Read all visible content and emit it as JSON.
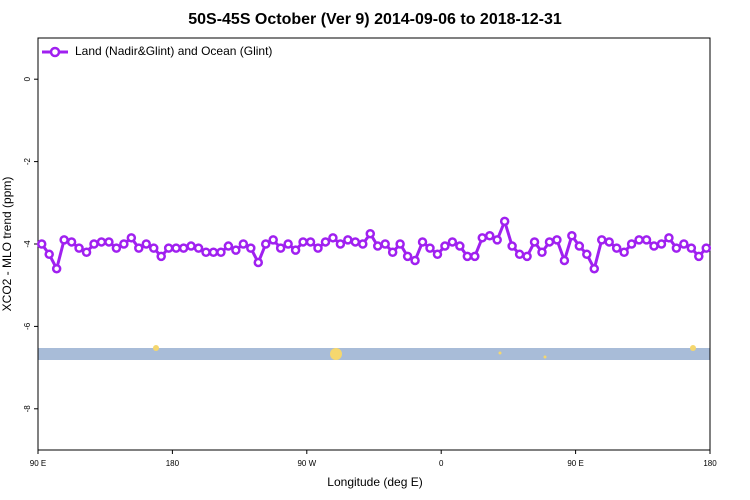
{
  "chart_data": {
    "type": "line",
    "title": "50S-45S October (Ver 9)   2014-09-06 to 2018-12-31",
    "x_label": "Longitude (deg E)",
    "y_label": "XCO2 - MLO trend (ppm)",
    "xlim": [
      90,
      540
    ],
    "ylim": [
      -9,
      1
    ],
    "xticks": [
      {
        "value": 90,
        "label": "90 E"
      },
      180,
      {
        "value": 270,
        "label": "90 W"
      },
      {
        "value": 360,
        "label": "0"
      },
      {
        "value": 450,
        "label": "90 E"
      },
      {
        "value": 540,
        "label": "180"
      }
    ],
    "yticks": [
      -8,
      -6,
      -4,
      -2,
      0
    ],
    "grid": false,
    "legend": "top-left",
    "x": [
      92.5,
      97.5,
      102.5,
      107.5,
      112.5,
      117.5,
      122.5,
      127.5,
      132.5,
      137.5,
      142.5,
      147.5,
      152.5,
      157.5,
      162.5,
      167.5,
      172.5,
      177.5,
      182.5,
      187.5,
      192.5,
      197.5,
      202.5,
      207.5,
      212.5,
      217.5,
      222.5,
      227.5,
      232.5,
      237.5,
      242.5,
      247.5,
      252.5,
      257.5,
      262.5,
      267.5,
      272.5,
      277.5,
      282.5,
      287.5,
      292.5,
      297.5,
      302.5,
      307.5,
      312.5,
      317.5,
      322.5,
      327.5,
      332.5,
      337.5,
      342.5,
      347.5,
      352.5,
      357.5,
      362.5,
      367.5,
      372.5,
      377.5,
      382.5,
      387.5,
      392.5,
      397.5,
      402.5,
      407.5,
      412.5,
      417.5,
      422.5,
      427.5,
      432.5,
      437.5,
      442.5,
      447.5,
      452.5,
      457.5,
      462.5,
      467.5,
      472.5,
      477.5,
      482.5,
      487.5,
      492.5,
      497.5,
      502.5,
      507.5,
      512.5,
      517.5,
      522.5,
      527.5,
      532.5,
      537.5
    ],
    "series": [
      {
        "name": "Land (Nadir&Glint) and Ocean (Glint)",
        "color": "#a020f0",
        "values": [
          -4.0,
          -4.25,
          -4.6,
          -3.9,
          -3.95,
          -4.1,
          -4.2,
          -4.0,
          -3.95,
          -3.95,
          -4.1,
          -4.0,
          -3.85,
          -4.1,
          -4.0,
          -4.1,
          -4.3,
          -4.1,
          -4.1,
          -4.1,
          -4.05,
          -4.1,
          -4.2,
          -4.2,
          -4.2,
          -4.05,
          -4.15,
          -4.0,
          -4.1,
          -4.45,
          -4.0,
          -3.9,
          -4.1,
          -4.0,
          -4.15,
          -3.95,
          -3.95,
          -4.1,
          -3.95,
          -3.85,
          -4.0,
          -3.9,
          -3.95,
          -4.0,
          -3.75,
          -4.05,
          -4.0,
          -4.2,
          -4.0,
          -4.3,
          -4.4,
          -3.95,
          -4.1,
          -4.25,
          -4.05,
          -3.95,
          -4.05,
          -4.3,
          -4.3,
          -3.85,
          -3.8,
          -3.9,
          -3.45,
          -4.05,
          -4.25,
          -4.3,
          -3.95,
          -4.2,
          -3.95,
          -3.9,
          -4.4,
          -3.8,
          -4.05,
          -4.25,
          -4.6,
          -3.9,
          -3.95,
          -4.1,
          -4.2,
          -4.0,
          -3.9,
          -3.9,
          -4.05,
          -4.0,
          -3.85,
          -4.1,
          -4.0,
          -4.1,
          -4.3,
          -4.1
        ]
      }
    ]
  }
}
